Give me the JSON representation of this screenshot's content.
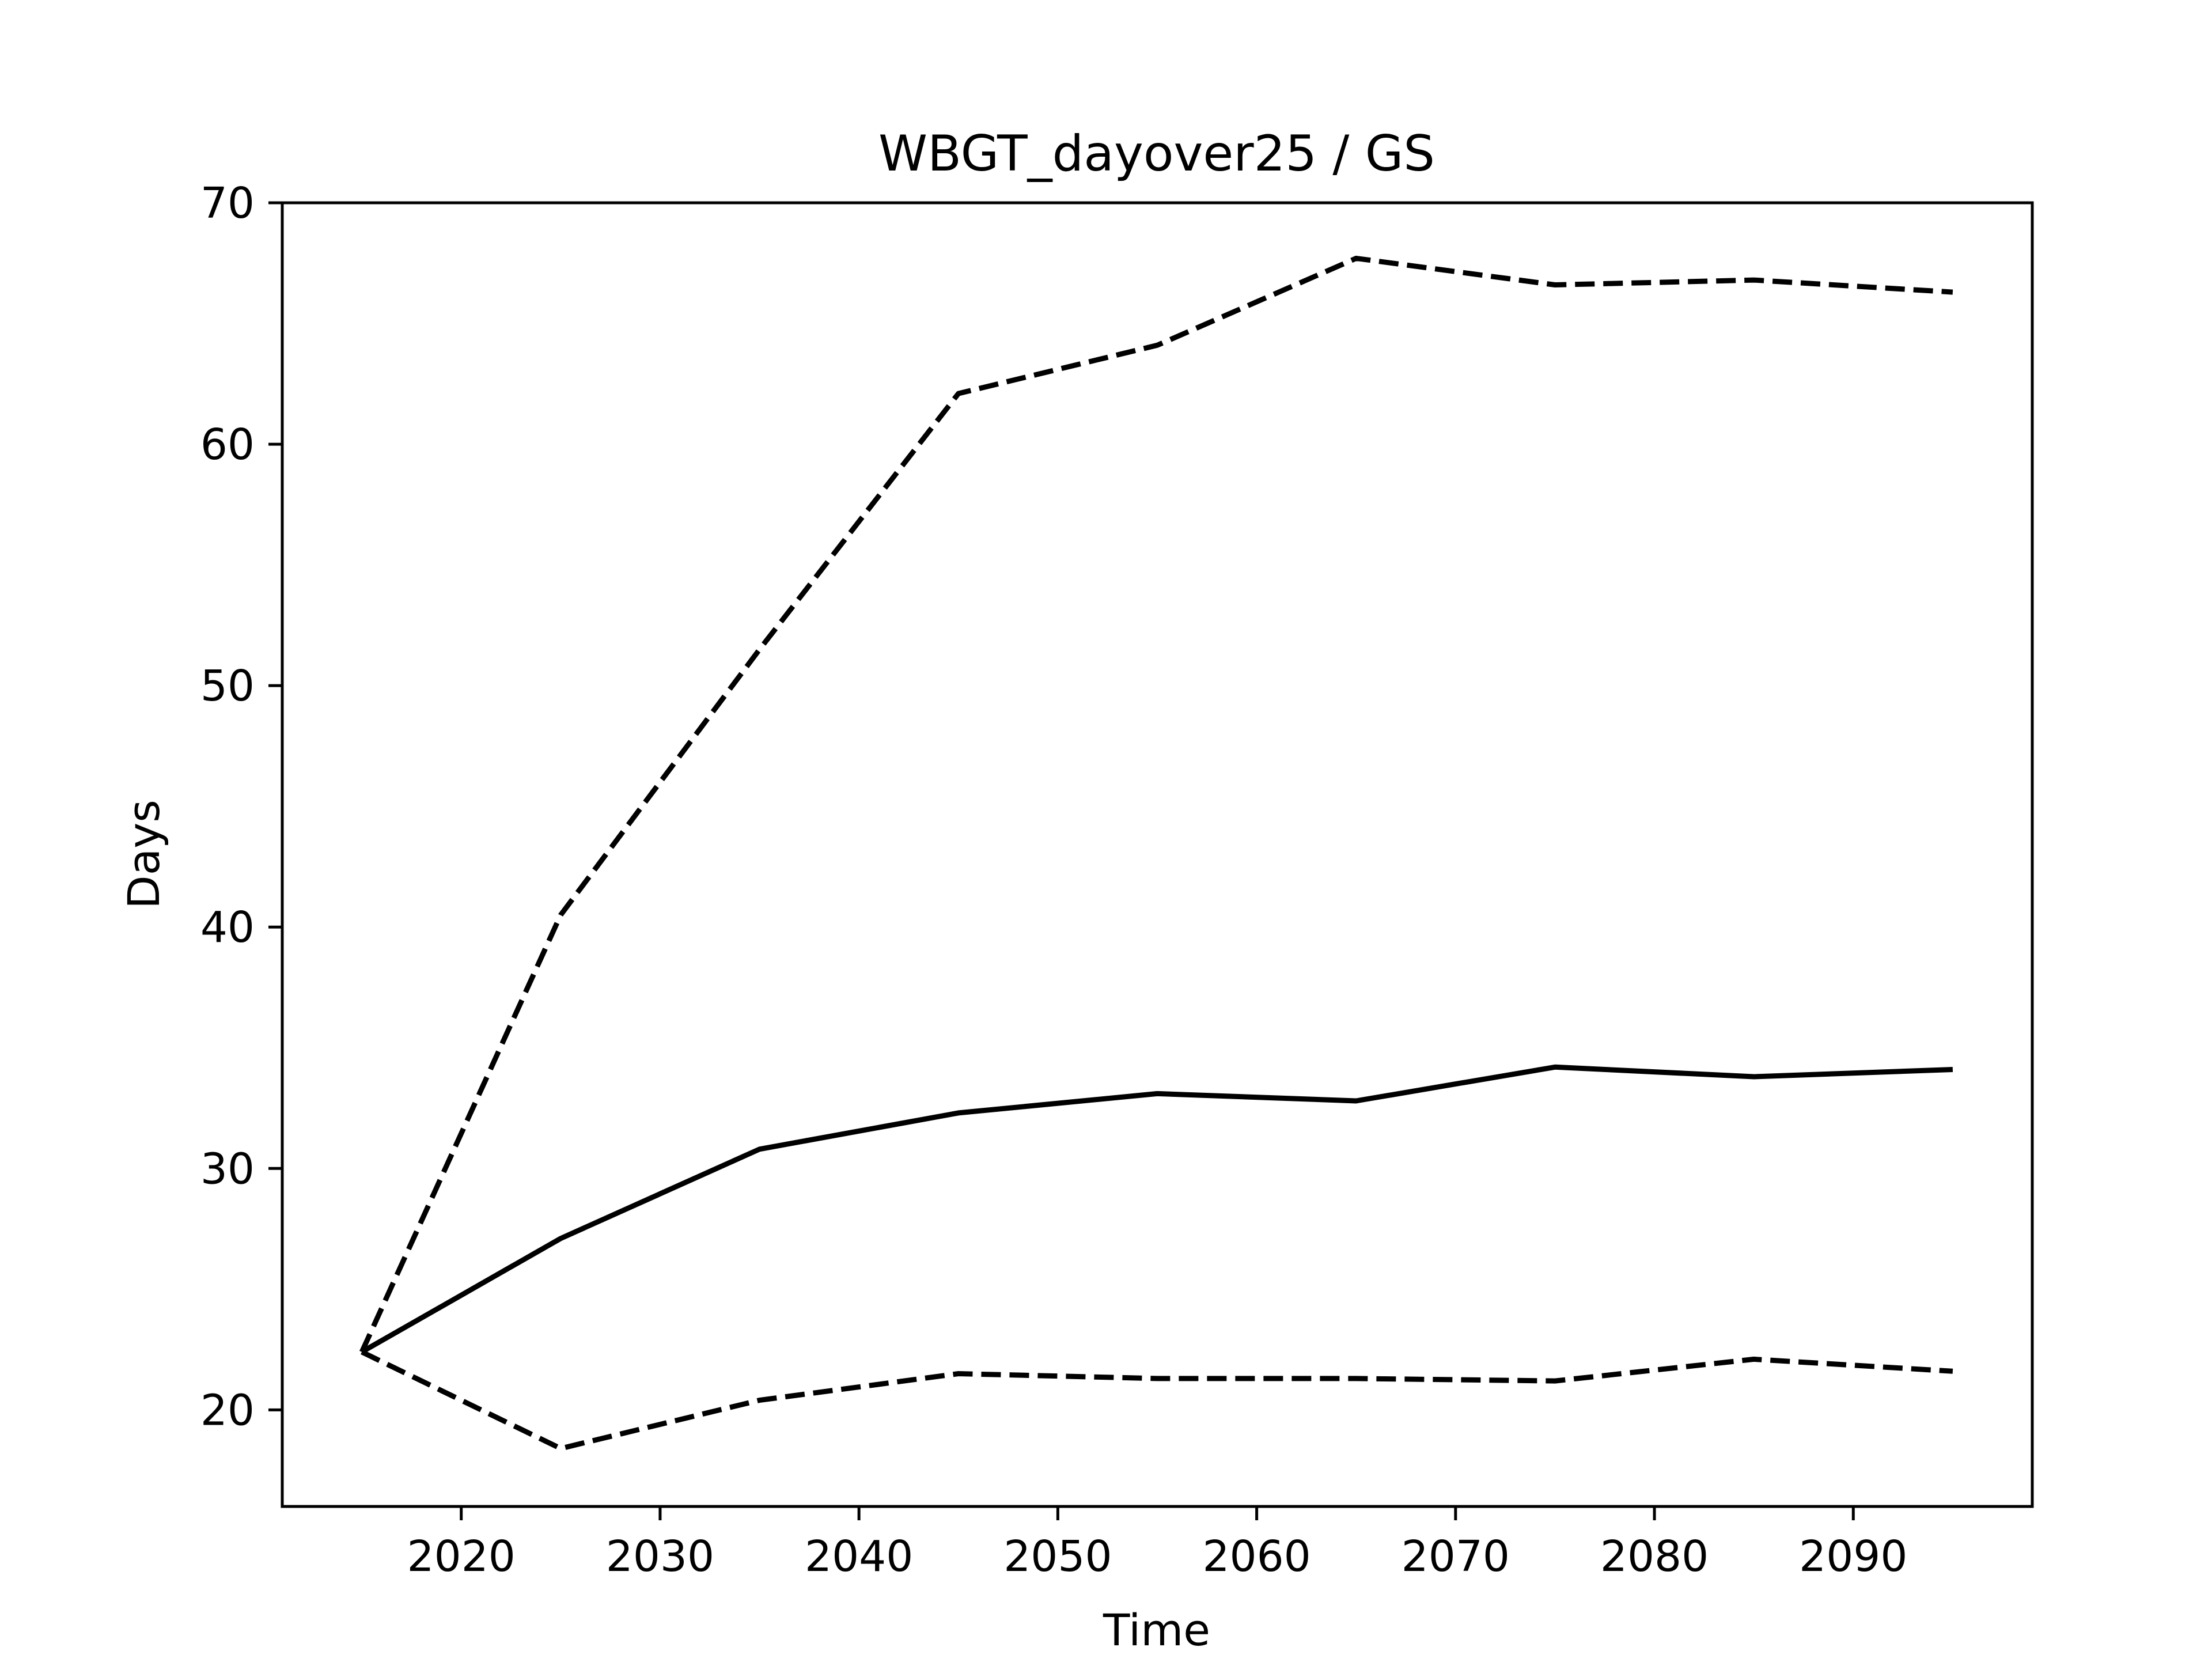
{
  "chart_data": {
    "type": "line",
    "title": "WBGT_dayover25 / GS",
    "xlabel": "Time",
    "ylabel": "Days",
    "xlim": [
      2011,
      2099
    ],
    "ylim": [
      16,
      70
    ],
    "xticks": [
      2020,
      2030,
      2040,
      2050,
      2060,
      2070,
      2080,
      2090
    ],
    "yticks": [
      20,
      30,
      40,
      50,
      60,
      70
    ],
    "grid": false,
    "legend": false,
    "x": [
      2015,
      2025,
      2035,
      2045,
      2055,
      2065,
      2075,
      2085,
      2095
    ],
    "series": [
      {
        "style": "dashed",
        "color": "#000000",
        "values": [
          22.4,
          40.5,
          51.5,
          62.1,
          64.1,
          67.7,
          66.6,
          66.8,
          66.3
        ]
      },
      {
        "style": "solid",
        "color": "#000000",
        "values": [
          22.4,
          27.1,
          30.8,
          32.3,
          33.1,
          32.8,
          34.2,
          33.8,
          34.1
        ]
      },
      {
        "style": "dashed",
        "color": "#000000",
        "values": [
          22.4,
          18.4,
          20.4,
          21.5,
          21.3,
          21.3,
          21.2,
          22.1,
          21.6
        ]
      }
    ]
  }
}
